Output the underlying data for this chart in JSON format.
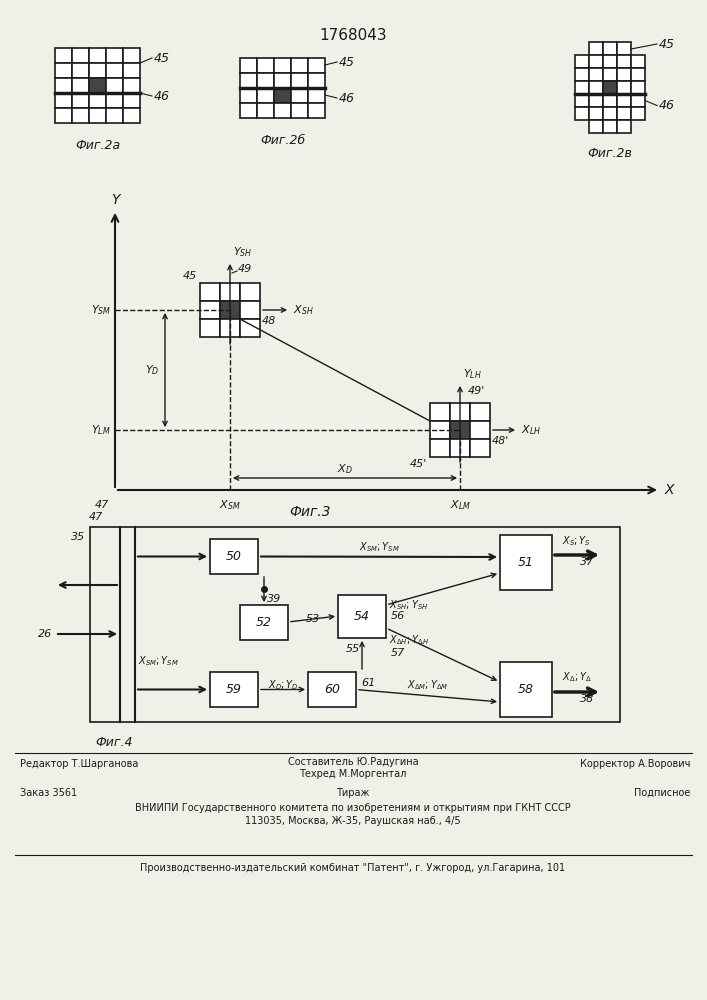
{
  "patent_number": "1768043",
  "fig2a_label": "Фиг.2а",
  "fig2b_label": "Фиг.2б",
  "fig2v_label": "Фиг.2в",
  "fig3_label": "Фиг.3",
  "fig4_label": "Фиг.4",
  "background_color": "#f0efe8",
  "line_color": "#1a1a1a",
  "editor": "Редактор Т.Шарганова",
  "composer": "Составитель Ю.Радугина",
  "techred": "Техред М.Моргентал",
  "corrector": "Корректор А.Ворович",
  "order": "Заказ 3561",
  "tirazh": "Тираж",
  "podpisnoe": "Подписное",
  "vniip_line1": "ВНИИПИ Государственного комитета по изобретениям и открытиям при ГКНТ СССР",
  "vniip_line2": "113035, Москва, Ж-35, Раушская наб., 4/5",
  "factory_line": "Производственно-издательский комбинат \"Патент\", г. Ужгород, ул.Гагарина, 101"
}
